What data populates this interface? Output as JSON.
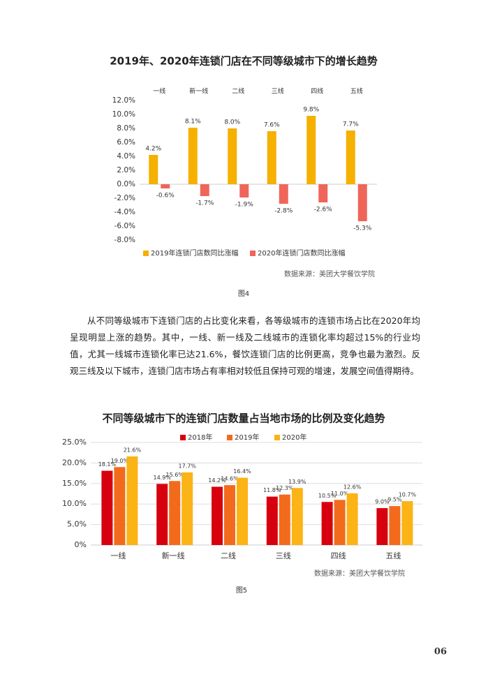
{
  "chart_data": [
    {
      "type": "bar",
      "title": "2019年、2020年连锁门店在不同等级城市下的增长趋势",
      "categories": [
        "一线",
        "新一线",
        "二线",
        "三线",
        "四线",
        "五线"
      ],
      "series": [
        {
          "name": "2019年连锁门店数同比涨幅",
          "color": "#f5b000",
          "values": [
            4.2,
            8.1,
            8.0,
            7.6,
            9.8,
            7.7
          ],
          "value_labels": [
            "4.2%",
            "8.1%",
            "8.0%",
            "7.6%",
            "9.8%",
            "7.7%"
          ]
        },
        {
          "name": "2020年连锁门店数同比涨幅",
          "color": "#f0655a",
          "values": [
            -0.6,
            -1.7,
            -1.9,
            -2.8,
            -2.6,
            -5.3
          ],
          "value_labels": [
            "-0.6%",
            "-1.7%",
            "-1.9%",
            "-2.8%",
            "-2.6%",
            "-5.3%"
          ]
        }
      ],
      "ylim": [
        -8,
        12
      ],
      "yticks": [
        {
          "value": 12,
          "label": "12.0%"
        },
        {
          "value": 10,
          "label": "10.0%"
        },
        {
          "value": 8,
          "label": "8.0%"
        },
        {
          "value": 6,
          "label": "6.0%"
        },
        {
          "value": 4,
          "label": "4.0%"
        },
        {
          "value": 2,
          "label": "2.0%"
        },
        {
          "value": 0,
          "label": "0.0%"
        },
        {
          "value": -2,
          "label": "-2.0%"
        },
        {
          "value": -4,
          "label": "-4.0%"
        },
        {
          "value": -6,
          "label": "-6.0%"
        },
        {
          "value": -8,
          "label": "-8.0%"
        }
      ],
      "grid": false,
      "source": "数据来源：美团大学餐饮学院"
    },
    {
      "type": "bar",
      "title": "不同等级城市下的连锁门店数量占当地市场的比例及变化趋势",
      "categories": [
        "一线",
        "新一线",
        "二线",
        "三线",
        "四线",
        "五线"
      ],
      "series": [
        {
          "name": "2018年",
          "color": "#d7000f",
          "values": [
            18.1,
            14.9,
            14.2,
            11.8,
            10.5,
            9.0
          ],
          "value_labels": [
            "18.1%",
            "14.9%",
            "14.2%",
            "11.8%",
            "10.5%",
            "9.0%"
          ]
        },
        {
          "name": "2019年",
          "color": "#f26b1d",
          "values": [
            19.0,
            15.6,
            14.6,
            12.3,
            11.0,
            9.5
          ],
          "value_labels": [
            "19.0%",
            "15.6%",
            "14.6%",
            "12.3%",
            "11.0%",
            "9.5%"
          ]
        },
        {
          "name": "2020年",
          "color": "#fbb316",
          "values": [
            21.6,
            17.7,
            16.4,
            13.9,
            12.6,
            10.7
          ],
          "value_labels": [
            "21.6%",
            "17.7%",
            "16.4%",
            "13.9%",
            "12.6%",
            "10.7%"
          ]
        }
      ],
      "ylim": [
        0,
        25
      ],
      "yticks": [
        {
          "value": 25,
          "label": "25.0%"
        },
        {
          "value": 20,
          "label": "20.0%"
        },
        {
          "value": 15,
          "label": "15.0%"
        },
        {
          "value": 10,
          "label": "10.0%"
        },
        {
          "value": 5,
          "label": "5.0%"
        },
        {
          "value": 0,
          "label": "0%"
        }
      ],
      "grid": true,
      "source": "数据来源：美团大学餐饮学院"
    }
  ],
  "document": {
    "figure_captions": [
      "图4",
      "图5"
    ],
    "paragraph": "从不同等级城市下连锁门店的占比变化来看，各等级城市的连锁市场占比在2020年均呈现明显上涨的趋势。其中，一线、新一线及二线城市的连锁化率均超过15%的行业均值，尤其一线城市连锁化率已达21.6%，餐饮连锁门店的比例更高，竞争也最为激烈。反观三线及以下城市，连锁门店市场占有率相对较低且保持可观的增速，发展空间值得期待。",
    "page_number": "06"
  }
}
